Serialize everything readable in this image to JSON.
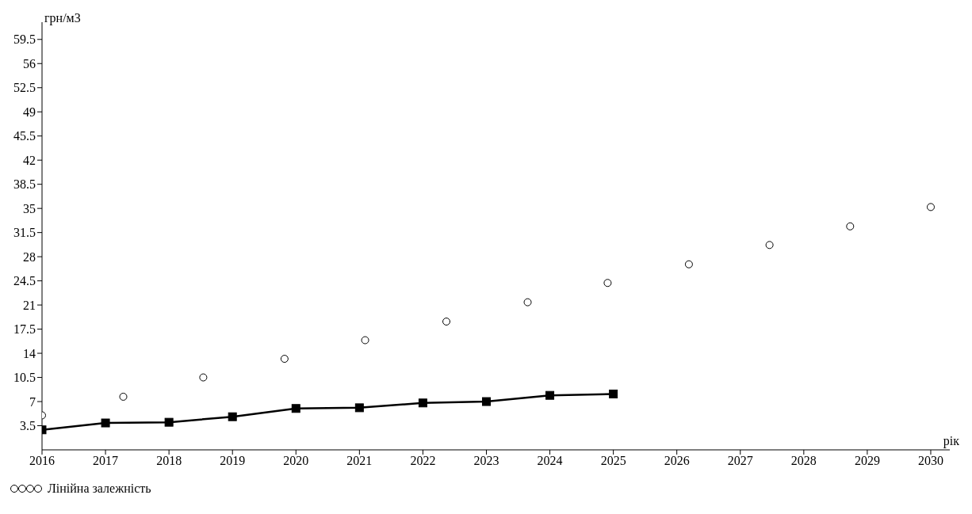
{
  "chart_data": {
    "type": "line",
    "xlabel": "рік",
    "ylabel": "грн/м3",
    "xlim": [
      2016,
      2030.3
    ],
    "xticks": [
      2016,
      2017,
      2018,
      2019,
      2020,
      2021,
      2022,
      2023,
      2024,
      2025,
      2026,
      2027,
      2028,
      2029,
      2030
    ],
    "ylim": [
      0,
      62
    ],
    "yticks": [
      3.5,
      7,
      10.5,
      14,
      17.5,
      21,
      24.5,
      28,
      31.5,
      35,
      38.5,
      42,
      45.5,
      49,
      52.5,
      56,
      59.5
    ],
    "grid": false,
    "legend": "bottom left",
    "series": [
      {
        "name": "Лінійна залежність",
        "type": "scatter",
        "marker": "circle",
        "color": "#000000",
        "x": [
          2016,
          2017.28,
          2018.54,
          2019.82,
          2021.09,
          2022.37,
          2023.65,
          2024.91,
          2026.19,
          2027.46,
          2028.73,
          2030
        ],
        "values": [
          5.0,
          7.7,
          10.5,
          13.2,
          15.9,
          18.6,
          21.4,
          24.2,
          26.9,
          29.7,
          32.4,
          35.2
        ]
      },
      {
        "marker": "square",
        "line_style": "solid",
        "color": "#000000",
        "x": [
          2016,
          2017,
          2018,
          2019,
          2020,
          2021,
          2022,
          2023,
          2024,
          2025
        ],
        "values": [
          2.9,
          3.9,
          4.0,
          4.8,
          6.0,
          6.1,
          6.8,
          7.0,
          7.9,
          8.1
        ]
      }
    ]
  }
}
